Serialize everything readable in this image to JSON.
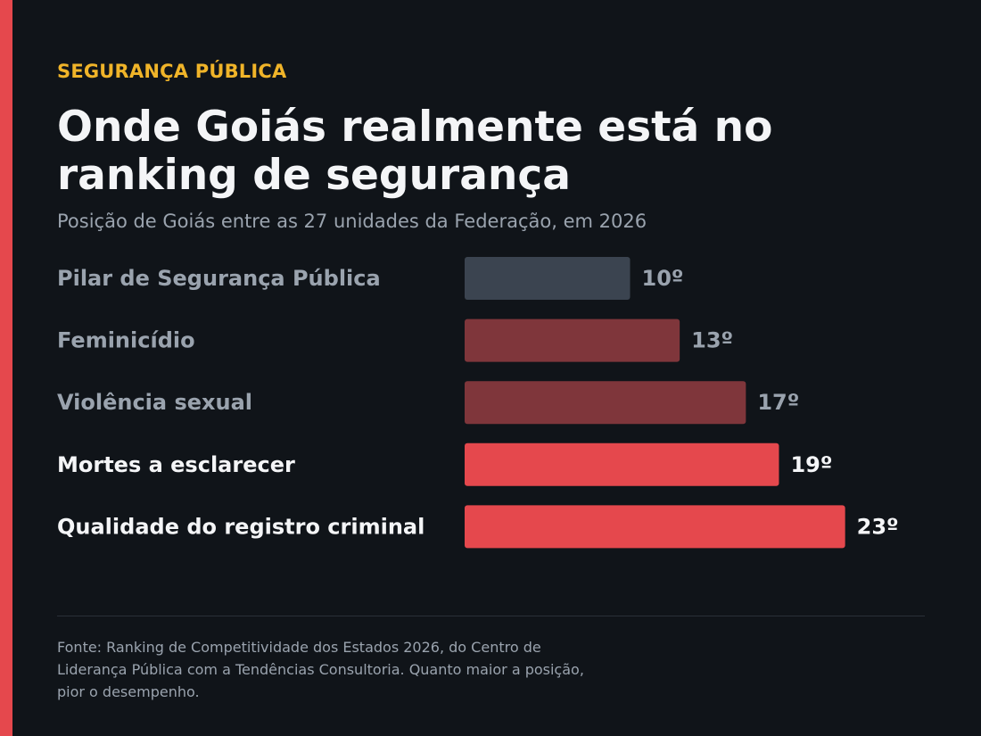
{
  "header": {
    "kicker": "SEGURANÇA PÚBLICA",
    "title": "Onde Goiás realmente está no ranking de segurança",
    "subtitle": "Posição de Goiás entre as 27 unidades da Federação, em 2026"
  },
  "footer": {
    "source": "Fonte: Ranking de Competitividade dos Estados 2026, do Centro de Liderança Pública com a Tendências Consultoria. Quanto maior a posição, pior o desempenho."
  },
  "colors": {
    "background": "#101419",
    "accent": "#e5484d",
    "kicker": "#f0b429",
    "neutral_bar": "#3b4450",
    "muted_red_bar": "#7f363b",
    "bright_red_bar": "#e5484d",
    "muted_text": "#9aa3ae",
    "bright_text": "#f4f5f7"
  },
  "chart_data": {
    "type": "bar",
    "orientation": "horizontal",
    "categories": [
      "Pilar de Segurança Pública",
      "Feminicídio",
      "Violência sexual",
      "Mortes a esclarecer",
      "Qualidade do registro criminal"
    ],
    "values": [
      10,
      13,
      17,
      19,
      23
    ],
    "value_labels": [
      "10º",
      "13º",
      "17º",
      "19º",
      "23º"
    ],
    "bar_styles": [
      "neutral",
      "muted-red",
      "muted-red",
      "bright-red",
      "bright-red"
    ],
    "label_emphasis": [
      "muted",
      "muted",
      "muted",
      "bright",
      "bright"
    ],
    "xlim": [
      0,
      27
    ],
    "grid": false,
    "legend": "none"
  }
}
